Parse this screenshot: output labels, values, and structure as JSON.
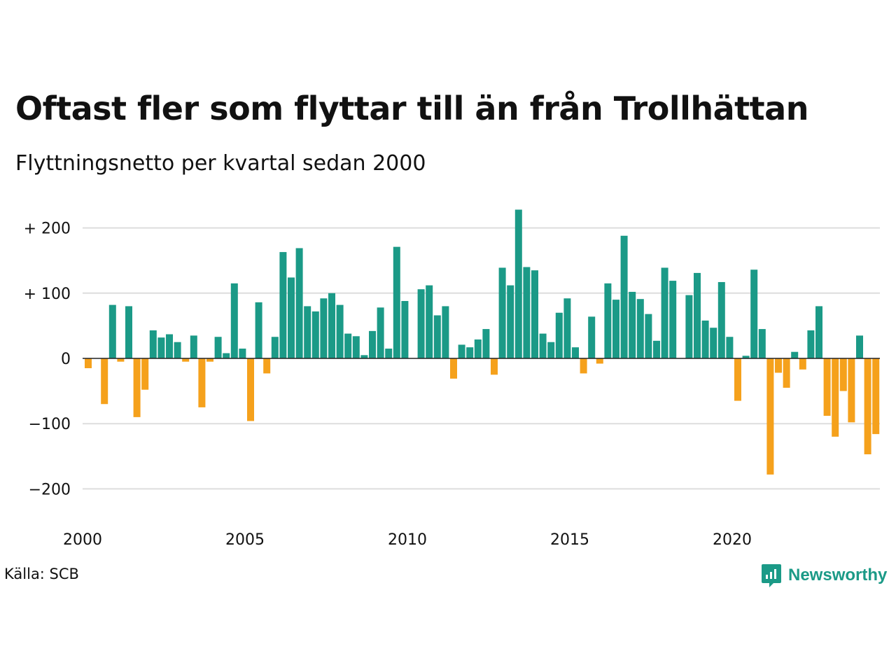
{
  "title": "Oftast fler som flyttar till än från Trollhättan",
  "subtitle": "Flyttningsnetto per kvartal sedan 2000",
  "source": "Källa: SCB",
  "brand": {
    "name": "Newsworthy",
    "icon": "newsworthy-logo-icon",
    "color": "#1b9a87"
  },
  "colors": {
    "positive": "#1b9a87",
    "negative": "#f5a11c",
    "grid": "#dddddd",
    "zero_line": "#222222"
  },
  "chart_data": {
    "type": "bar",
    "title": "Oftast fler som flyttar till än från Trollhättan",
    "subtitle": "Flyttningsnetto per kvartal sedan 2000",
    "xlabel": "",
    "ylabel": "",
    "x_start": 2000.0,
    "x_step": 0.25,
    "xlim": [
      2000,
      2024.75
    ],
    "ylim": [
      -235,
      230
    ],
    "yticks": [
      {
        "value": 200,
        "label": "+ 200"
      },
      {
        "value": 100,
        "label": "+ 100"
      },
      {
        "value": 0,
        "label": "0"
      },
      {
        "value": -100,
        "label": "−100"
      },
      {
        "value": -200,
        "label": "−200"
      }
    ],
    "xticks": [
      {
        "value": 2000,
        "label": "2000"
      },
      {
        "value": 2005,
        "label": "2005"
      },
      {
        "value": 2010,
        "label": "2010"
      },
      {
        "value": 2015,
        "label": "2015"
      },
      {
        "value": 2020,
        "label": "2020"
      }
    ],
    "grid": true,
    "values": [
      -15,
      0,
      -70,
      82,
      -5,
      80,
      -90,
      -48,
      43,
      32,
      37,
      25,
      -5,
      35,
      -75,
      -5,
      33,
      8,
      115,
      15,
      -96,
      86,
      -23,
      33,
      163,
      124,
      169,
      80,
      72,
      92,
      100,
      82,
      38,
      34,
      5,
      42,
      78,
      15,
      171,
      88,
      0,
      106,
      112,
      66,
      80,
      -31,
      21,
      17,
      29,
      45,
      -25,
      139,
      112,
      228,
      140,
      135,
      38,
      25,
      70,
      92,
      17,
      -23,
      64,
      -8,
      115,
      90,
      188,
      102,
      91,
      68,
      27,
      139,
      119,
      0,
      97,
      131,
      58,
      47,
      117,
      33,
      -65,
      4,
      136,
      45,
      -178,
      -22,
      -45,
      10,
      -17,
      43,
      80,
      -88,
      -120,
      -50,
      -98,
      35,
      -147,
      -116
    ]
  }
}
